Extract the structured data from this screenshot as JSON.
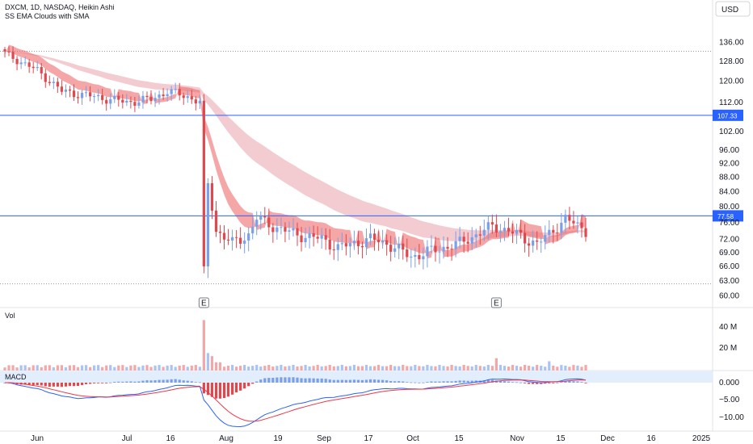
{
  "legend": {
    "main": "DXCM, 1D, NASDAQ, Heikin Ashi",
    "indicator": "SS EMA Clouds with SMA"
  },
  "currency_button": "USD",
  "volume_label": "Vol",
  "macd_label": "MACD",
  "earnings_marker": "E",
  "colors": {
    "up_candle": "#7b9fe8",
    "down_candle": "#e0484d",
    "cloud_fast": "#ef6b6b",
    "cloud_slow": "#eaa3ad",
    "vol_up": "#f2a7a8",
    "macd_line": "#2962ff",
    "signal_line": "#f23645",
    "hline": "#2962ff"
  },
  "chart_data": {
    "type": "candlestick",
    "price_axis": {
      "ticks": [
        "136.00",
        "128.00",
        "120.00",
        "112.00",
        "102.00",
        "96.00",
        "92.00",
        "88.00",
        "84.00",
        "80.00",
        "76.00",
        "72.00",
        "69.00",
        "66.00",
        "63.00",
        "60.00"
      ],
      "label_values": [
        136,
        128,
        120,
        112,
        102,
        96,
        92,
        88,
        84,
        80,
        76,
        72,
        69,
        66,
        63,
        60
      ],
      "log_scale": true
    },
    "time_axis": {
      "ticks": [
        "Jun",
        "Jul",
        "16",
        "Aug",
        "19",
        "Sep",
        "17",
        "Oct",
        "15",
        "Nov",
        "15",
        "Dec",
        "16",
        "2025"
      ]
    },
    "volume_axis": {
      "ticks": [
        "40 M",
        "20 M"
      ]
    },
    "macd_axis": {
      "ticks": [
        "0.000",
        "−5.00",
        "−10.00"
      ]
    },
    "horizontal_lines": [
      {
        "value": 107.33,
        "label": "107.33"
      },
      {
        "value": 77.58,
        "label": "77.58"
      }
    ],
    "dotted_levels": [
      132.0,
      62.3
    ],
    "earnings_dates": [
      "Jul 25",
      "Oct 24"
    ],
    "series": [
      {
        "name": "DXCM",
        "period": "2024-05-24 to 2024-11-26"
      },
      {
        "name": "Vol"
      },
      {
        "name": "MACD"
      }
    ]
  }
}
